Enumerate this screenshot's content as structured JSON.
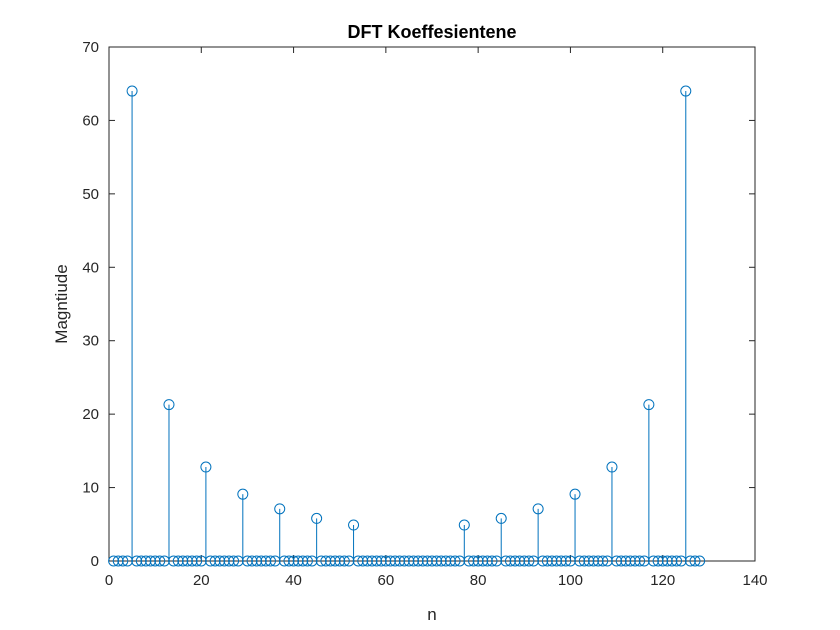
{
  "chart_data": {
    "type": "scatter",
    "style": "stem",
    "title": "DFT Koeffesientene",
    "xlabel": "n",
    "ylabel": "Magntiude",
    "xlim": [
      0,
      140
    ],
    "ylim": [
      0,
      70
    ],
    "xticks": [
      "0",
      "20",
      "40",
      "60",
      "80",
      "100",
      "120",
      "140"
    ],
    "yticks": [
      "0",
      "10",
      "20",
      "30",
      "40",
      "50",
      "60",
      "70"
    ],
    "grid": false,
    "marker": "open-circle",
    "series_color": "#0072BD",
    "x_start": 1,
    "x_end": 128,
    "nonzero_points": [
      {
        "x": 5,
        "y": 64
      },
      {
        "x": 13,
        "y": 21.3
      },
      {
        "x": 21,
        "y": 12.8
      },
      {
        "x": 29,
        "y": 9.1
      },
      {
        "x": 37,
        "y": 7.1
      },
      {
        "x": 45,
        "y": 5.8
      },
      {
        "x": 53,
        "y": 4.9
      },
      {
        "x": 77,
        "y": 4.9
      },
      {
        "x": 85,
        "y": 5.8
      },
      {
        "x": 93,
        "y": 7.1
      },
      {
        "x": 101,
        "y": 9.1
      },
      {
        "x": 109,
        "y": 12.8
      },
      {
        "x": 117,
        "y": 21.3
      },
      {
        "x": 125,
        "y": 64
      }
    ]
  }
}
